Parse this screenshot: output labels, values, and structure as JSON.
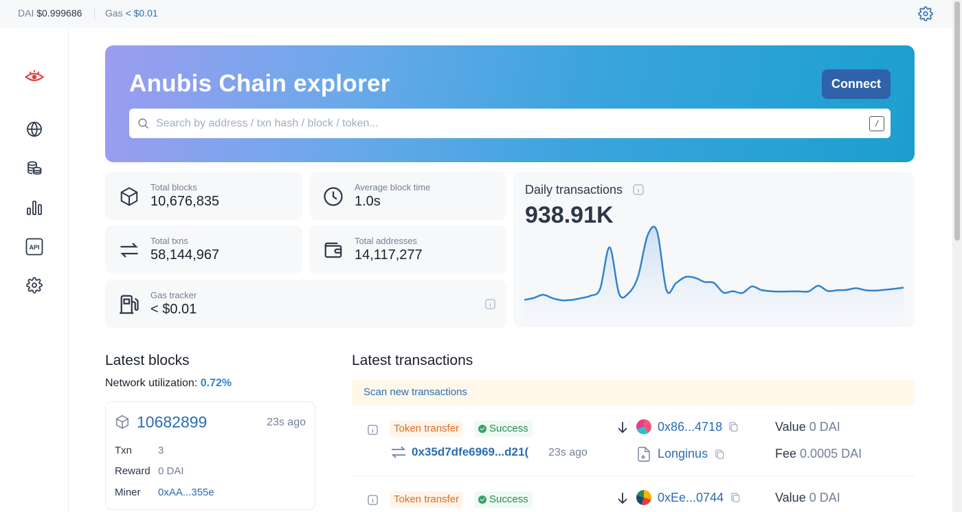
{
  "topbar": {
    "dai_label": "DAI",
    "dai_price": "$0.999686",
    "gas_label": "Gas",
    "gas_value": "< $0.01"
  },
  "hero": {
    "title": "Anubis Chain explorer",
    "connect_label": "Connect",
    "search_placeholder": "Search by address / txn hash / block / token...",
    "search_shortcut": "/"
  },
  "stats": {
    "total_blocks": {
      "label": "Total blocks",
      "value": "10,676,835"
    },
    "avg_block_time": {
      "label": "Average block time",
      "value": "1.0s"
    },
    "total_txns": {
      "label": "Total txns",
      "value": "58,144,967"
    },
    "total_addresses": {
      "label": "Total addresses",
      "value": "14,117,277"
    },
    "gas_tracker": {
      "label": "Gas tracker",
      "value": "< $0.01"
    }
  },
  "daily": {
    "title": "Daily transactions",
    "value": "938.91K"
  },
  "chart_data": {
    "type": "area",
    "title": "Daily transactions",
    "x": [
      0,
      1,
      2,
      3,
      4,
      5,
      6,
      7,
      8,
      9,
      10,
      11,
      12,
      13,
      14,
      15,
      16,
      17,
      18,
      19,
      20,
      21,
      22,
      23,
      24,
      25,
      26,
      27,
      28,
      29,
      30,
      31,
      32,
      33,
      34,
      35,
      36,
      37,
      38,
      39,
      40
    ],
    "values": [
      0.96,
      1.06,
      1.22,
      1.04,
      0.94,
      0.96,
      1.05,
      1.17,
      1.53,
      3.62,
      1.27,
      1.3,
      2.15,
      4.22,
      4.43,
      1.45,
      1.81,
      2.12,
      2.08,
      1.87,
      1.82,
      1.33,
      1.4,
      1.31,
      1.64,
      1.46,
      1.4,
      1.38,
      1.39,
      1.39,
      1.39,
      1.68,
      1.41,
      1.45,
      1.47,
      1.55,
      1.45,
      1.43,
      1.47,
      1.52,
      1.58
    ],
    "grid": false,
    "legend": "none",
    "line_color": "#3182ce"
  },
  "latest_blocks": {
    "title": "Latest blocks",
    "util_label": "Network utilization:",
    "util_value": "0.72%",
    "blocks": [
      {
        "number": "10682899",
        "ago": "23s ago",
        "txn_label": "Txn",
        "txn": "3",
        "reward_label": "Reward",
        "reward": "0 DAI",
        "miner_label": "Miner",
        "miner": "0xAA...355e"
      }
    ]
  },
  "latest_tx": {
    "title": "Latest transactions",
    "scan_label": "Scan new transactions",
    "items": [
      {
        "type": "Token transfer",
        "status": "Success",
        "hash": "0x35d7dfe6969...d21(",
        "ago": "23s ago",
        "from": "0x86...4718",
        "to": "Longinus",
        "value_label": "Value",
        "value": "0 DAI",
        "fee_label": "Fee",
        "fee": "0.0005 DAI"
      },
      {
        "type": "Token transfer",
        "status": "Success",
        "from": "0xEe...0744",
        "value_label": "Value",
        "value": "0 DAI"
      }
    ]
  },
  "colors": {
    "accent": "#2b6cb0",
    "brand_red": "#e53e3e",
    "success": "#38a169",
    "warn": "#dd6b20"
  }
}
